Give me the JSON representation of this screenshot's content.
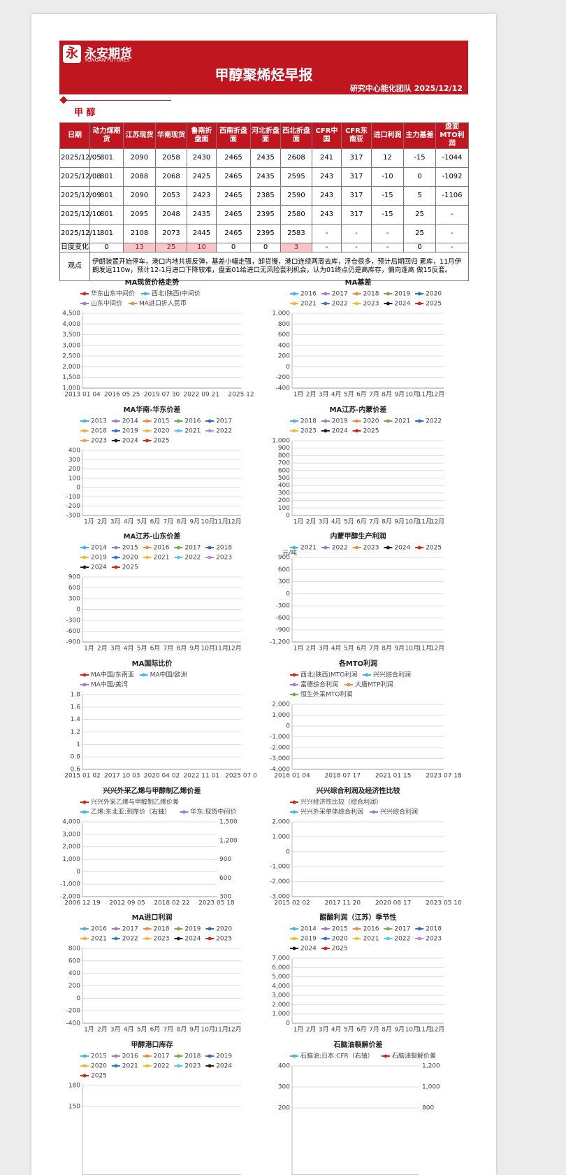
{
  "header": {
    "logo": "永安期货",
    "logo_en": "YONGAN FUTURES",
    "title": "甲醇聚烯烃早报",
    "subtitle": "研究中心能化团队  2025/12/12"
  },
  "section": "甲 醇",
  "table": {
    "columns": [
      "日期",
      "动力煤期货",
      "江苏现货",
      "华南现货",
      "鲁南折盘面",
      "西南折盘面",
      "河北折盘面",
      "西北折盘面",
      "CFR中国",
      "CFR东南亚",
      "进口利润",
      "主力基差",
      "盘面MTO利润"
    ],
    "rows": [
      [
        "2025/12/05",
        801,
        2090,
        2058,
        2430,
        2465,
        2435,
        2608,
        241,
        317,
        12,
        -15,
        -1044
      ],
      [
        "2025/12/08",
        801,
        2088,
        2068,
        2425,
        2465,
        2435,
        2595,
        243,
        317,
        -10,
        0,
        -1092
      ],
      [
        "2025/12/09",
        801,
        2090,
        2053,
        2423,
        2465,
        2385,
        2590,
        243,
        317,
        -15,
        5,
        -1106
      ],
      [
        "2025/12/10",
        801,
        2095,
        2048,
        2435,
        2465,
        2395,
        2580,
        243,
        317,
        -15,
        25,
        "-"
      ],
      [
        "2025/12/11",
        801,
        2108,
        2073,
        2445,
        2465,
        2395,
        2583,
        "-",
        "-",
        "-",
        25,
        "-"
      ]
    ],
    "change_label": "日度变化",
    "change": [
      {
        "text": 0,
        "highlight": false
      },
      {
        "text": 13,
        "highlight": true
      },
      {
        "text": 25,
        "highlight": true
      },
      {
        "text": 10,
        "highlight": true
      },
      {
        "text": 0,
        "highlight": false
      },
      {
        "text": 0,
        "highlight": false
      },
      {
        "text": 3,
        "highlight": true
      },
      {
        "text": "-",
        "highlight": false
      },
      {
        "text": "-",
        "highlight": false
      },
      {
        "text": "-",
        "highlight": false
      },
      {
        "text": 0,
        "highlight": false
      },
      {
        "text": "-",
        "highlight": false
      }
    ],
    "highlight_color": "#f6c6c8",
    "comment_label": "观点",
    "comment": "伊朗装置开始停车，港口内地共振反弹，基差小幅走强，卸货慢，港口连续两周去库，浮仓很多，预计后期回归 累库，11月伊朗发运110w，预计12-1月进口下降较难，盘面01给进口无风险套利机会，认为01终点仍是高库存，偏向逢高 做15反套。"
  },
  "charts": [
    {
      "title": "MA现货价格走势",
      "legend": [
        {
          "name": "华东山东中间价",
          "color": "#d7261e"
        },
        {
          "name": "西北(陕西)中间价",
          "color": "#3fb8e8"
        },
        {
          "name": "山东中间价",
          "color": "#a07cc8"
        },
        {
          "name": "MA进口折人民币",
          "color": "#f28a3f"
        }
      ],
      "yticks": [
        "1,000",
        "1,500",
        "2,000",
        "2,500",
        "3,000",
        "3,500",
        "4,000",
        "4,500"
      ],
      "xticks": [
        "2013 01 04",
        "2016 05 25",
        "2019 07 30",
        "2022 09 21",
        "2025 12"
      ]
    },
    {
      "title": "MA基差",
      "legend": [
        {
          "name": "2016",
          "color": "#3fb8e8"
        },
        {
          "name": "2017",
          "color": "#a07cc8"
        },
        {
          "name": "2018",
          "color": "#f28a3f"
        },
        {
          "name": "2019",
          "color": "#70ad47"
        },
        {
          "name": "2020",
          "color": "#2f6ec5"
        },
        {
          "name": "2021",
          "color": "#f5b630"
        },
        {
          "name": "2022",
          "color": "#3a78d0"
        },
        {
          "name": "2023",
          "color": "#f0c030"
        },
        {
          "name": "2024",
          "color": "#222222"
        },
        {
          "name": "2025",
          "color": "#d7261e"
        }
      ],
      "yticks": [
        "-400",
        "-200",
        "0",
        "200",
        "400",
        "600",
        "800",
        "1,000"
      ],
      "xticks": [
        "1月",
        "2月",
        "3月",
        "4月",
        "5月",
        "6月",
        "7月",
        "8月",
        "9月",
        "10月",
        "11月",
        "12月"
      ]
    },
    {
      "title": "MA华南-华东价差",
      "legend": [
        {
          "name": "2013",
          "color": "#3fb8e8"
        },
        {
          "name": "2014",
          "color": "#a07cc8"
        },
        {
          "name": "2015",
          "color": "#f28a3f"
        },
        {
          "name": "2016",
          "color": "#70ad47"
        },
        {
          "name": "2017",
          "color": "#2f6ec5"
        },
        {
          "name": "2018",
          "color": "#f5b630"
        },
        {
          "name": "2019",
          "color": "#3a78d0"
        },
        {
          "name": "2020",
          "color": "#f0c030"
        },
        {
          "name": "2021",
          "color": "#5cc8ee"
        },
        {
          "name": "2022",
          "color": "#b48fd6"
        },
        {
          "name": "2023",
          "color": "#f5a05a"
        },
        {
          "name": "2024",
          "color": "#222222"
        },
        {
          "name": "2025",
          "color": "#d7261e"
        }
      ],
      "yticks": [
        "-300",
        "-200",
        "-100",
        "0",
        "100",
        "200",
        "300",
        "400"
      ],
      "xticks": [
        "1月",
        "2月",
        "3月",
        "4月",
        "5月",
        "6月",
        "7月",
        "8月",
        "9月",
        "10月",
        "11月",
        "12月"
      ]
    },
    {
      "title": "MA江苏-内蒙价差",
      "legend": [
        {
          "name": "2018",
          "color": "#3fb8e8"
        },
        {
          "name": "2019",
          "color": "#a07cc8"
        },
        {
          "name": "2020",
          "color": "#f28a3f"
        },
        {
          "name": "2021",
          "color": "#70ad47"
        },
        {
          "name": "2022",
          "color": "#2f6ec5"
        },
        {
          "name": "2023",
          "color": "#f5b630"
        },
        {
          "name": "2024",
          "color": "#222222"
        },
        {
          "name": "2025",
          "color": "#d7261e"
        }
      ],
      "yticks": [
        "0",
        "100",
        "200",
        "300",
        "400",
        "500",
        "600",
        "700",
        "800",
        "900",
        "1,000"
      ],
      "xticks": [
        "1月",
        "2月",
        "3月",
        "4月",
        "5月",
        "6月",
        "7月",
        "8月",
        "9月",
        "10月",
        "11月",
        "12月"
      ]
    },
    {
      "title": "MA江苏-山东价差",
      "legend": [
        {
          "name": "2014",
          "color": "#3fb8e8"
        },
        {
          "name": "2015",
          "color": "#a07cc8"
        },
        {
          "name": "2016",
          "color": "#f28a3f"
        },
        {
          "name": "2017",
          "color": "#70ad47"
        },
        {
          "name": "2018",
          "color": "#2f6ec5"
        },
        {
          "name": "2019",
          "color": "#f5b630"
        },
        {
          "name": "2020",
          "color": "#3a78d0"
        },
        {
          "name": "2021",
          "color": "#f0c030"
        },
        {
          "name": "2022",
          "color": "#5cc8ee"
        },
        {
          "name": "2023",
          "color": "#b48fd6"
        },
        {
          "name": "2024",
          "color": "#222222"
        },
        {
          "name": "2025",
          "color": "#d7261e"
        }
      ],
      "yticks": [
        "-900",
        "-600",
        "-300",
        "0",
        "300",
        "600",
        "900"
      ],
      "xticks": [
        "1月",
        "2月",
        "3月",
        "4月",
        "5月",
        "6月",
        "7月",
        "8月",
        "9月",
        "10月",
        "11月",
        "12月"
      ]
    },
    {
      "title": "内蒙甲醇生产利润",
      "unit": "元/吨",
      "legend": [
        {
          "name": "2021",
          "color": "#3fb8e8"
        },
        {
          "name": "2022",
          "color": "#a07cc8"
        },
        {
          "name": "2023",
          "color": "#f28a3f"
        },
        {
          "name": "2024",
          "color": "#222222"
        },
        {
          "name": "2025",
          "color": "#d7261e"
        }
      ],
      "yticks": [
        "-1,200",
        "-900",
        "-600",
        "-300",
        "0",
        "300",
        "600",
        "900"
      ],
      "xticks": [
        "1月",
        "2月",
        "3月",
        "4月",
        "5月",
        "6月",
        "7月",
        "8月",
        "9月",
        "10月",
        "11月",
        "12月"
      ]
    },
    {
      "title": "MA国际比价",
      "legend": [
        {
          "name": "MA中国/东南亚",
          "color": "#d7261e"
        },
        {
          "name": "MA中国/欧洲",
          "color": "#3fb8e8"
        },
        {
          "name": "MA中国/美湾",
          "color": "#a07cc8"
        }
      ],
      "yticks": [
        "0.6",
        "0.8",
        "1",
        "1.2",
        "1.4",
        "1.6",
        "1.8"
      ],
      "xticks": [
        "2015 01 02",
        "2017 10 03",
        "2020 04 02",
        "2022 11 01",
        "2025 07 0"
      ]
    },
    {
      "title": "各MTO利润",
      "legend": [
        {
          "name": "西北(陕西)MTO利润",
          "color": "#d7261e"
        },
        {
          "name": "兴兴综合利润",
          "color": "#3fb8e8"
        },
        {
          "name": "富德综合利润",
          "color": "#a07cc8"
        },
        {
          "name": "大唐MTP利润",
          "color": "#f28a3f"
        },
        {
          "name": "恒生外采MTO利润",
          "color": "#70ad47"
        }
      ],
      "yticks": [
        "-4,000",
        "-3,000",
        "-2,000",
        "-1,000",
        "0",
        "1,000",
        "2,000"
      ],
      "xticks": [
        "2016 01 04",
        "2018 07 17",
        "2021 01 15",
        "2023 07 18"
      ]
    },
    {
      "title": "兴兴外采乙烯与甲醇制乙烯价差",
      "legend": [
        {
          "name": "兴兴外采乙烯与甲醇制乙烯价差",
          "color": "#d7261e"
        },
        {
          "name": "乙烯:东北亚:到岸价（右轴）",
          "color": "#3fb8e8"
        },
        {
          "name": "华东:现货中间价",
          "color": "#a07cc8"
        }
      ],
      "yticks": [
        "-2,000",
        "-1,000",
        "0",
        "1,000",
        "2,000",
        "3,000",
        "4,000"
      ],
      "y2ticks": [
        "300",
        "600",
        "900",
        "1,200",
        "1,500"
      ],
      "xticks": [
        "2006 12 19",
        "2012 09 05",
        "2018 02 22",
        "2023 05 18"
      ]
    },
    {
      "title": "兴兴综合利润及经济性比较",
      "legend": [
        {
          "name": "兴兴经济性比较（综合利润）",
          "color": "#d7261e"
        },
        {
          "name": "兴兴外采单体综合利润",
          "color": "#3fb8e8"
        },
        {
          "name": "兴兴综合利润",
          "color": "#a07cc8"
        }
      ],
      "yticks": [
        "-3,000",
        "-2,000",
        "-1,000",
        "0",
        "1,000",
        "2,000"
      ],
      "xticks": [
        "2015 02 02",
        "2017 11 20",
        "2020 08 17",
        "2023 05 10"
      ]
    },
    {
      "title": "MA进口利润",
      "legend": [
        {
          "name": "2016",
          "color": "#3fb8e8"
        },
        {
          "name": "2017",
          "color": "#a07cc8"
        },
        {
          "name": "2018",
          "color": "#f28a3f"
        },
        {
          "name": "2019",
          "color": "#70ad47"
        },
        {
          "name": "2020",
          "color": "#2f6ec5"
        },
        {
          "name": "2021",
          "color": "#f5b630"
        },
        {
          "name": "2022",
          "color": "#3a78d0"
        },
        {
          "name": "2023",
          "color": "#f0c030"
        },
        {
          "name": "2024",
          "color": "#222222"
        },
        {
          "name": "2025",
          "color": "#d7261e"
        }
      ],
      "yticks": [
        "-400",
        "-200",
        "0",
        "200",
        "400",
        "600",
        "800"
      ],
      "xticks": [
        "1月",
        "2月",
        "3月",
        "4月",
        "5月",
        "6月",
        "7月",
        "8月",
        "9月",
        "10月",
        "11月",
        "12月"
      ]
    },
    {
      "title": "醋酸利润（江苏）季节性",
      "legend": [
        {
          "name": "2014",
          "color": "#3fb8e8"
        },
        {
          "name": "2015",
          "color": "#a07cc8"
        },
        {
          "name": "2016",
          "color": "#f28a3f"
        },
        {
          "name": "2017",
          "color": "#70ad47"
        },
        {
          "name": "2018",
          "color": "#2f6ec5"
        },
        {
          "name": "2019",
          "color": "#f5b630"
        },
        {
          "name": "2020",
          "color": "#3a78d0"
        },
        {
          "name": "2021",
          "color": "#f0c030"
        },
        {
          "name": "2022",
          "color": "#5cc8ee"
        },
        {
          "name": "2023",
          "color": "#b48fd6"
        },
        {
          "name": "2024",
          "color": "#222222"
        },
        {
          "name": "2025",
          "color": "#d7261e"
        }
      ],
      "yticks": [
        "0",
        "1,000",
        "2,000",
        "3,000",
        "4,000",
        "5,000",
        "6,000",
        "7,000"
      ],
      "xticks": [
        "1月",
        "2月",
        "3月",
        "4月",
        "5月",
        "6月",
        "7月",
        "8月",
        "9月",
        "10月",
        "11月",
        "12月"
      ]
    },
    {
      "title": "甲醇港口库存",
      "legend": [
        {
          "name": "2015",
          "color": "#3fb8e8"
        },
        {
          "name": "2016",
          "color": "#a07cc8"
        },
        {
          "name": "2017",
          "color": "#f28a3f"
        },
        {
          "name": "2018",
          "color": "#70ad47"
        },
        {
          "name": "2019",
          "color": "#2f6ec5"
        },
        {
          "name": "2020",
          "color": "#f5b630"
        },
        {
          "name": "2021",
          "color": "#3a78d0"
        },
        {
          "name": "2022",
          "color": "#f0c030"
        },
        {
          "name": "2023",
          "color": "#5cc8ee"
        },
        {
          "name": "2024",
          "color": "#222222"
        },
        {
          "name": "2025",
          "color": "#d7261e"
        }
      ],
      "yticks": [
        "150",
        "180"
      ],
      "xticks": []
    },
    {
      "title": "石脑油裂解价差",
      "legend": [
        {
          "name": "石脑油:日本:CFR（右轴）",
          "color": "#3fb8e8"
        },
        {
          "name": "石脑油裂解价差",
          "color": "#d7261e"
        }
      ],
      "yticks": [
        "200",
        "300",
        "400"
      ],
      "y2ticks": [
        "800",
        "1,000",
        "1,200"
      ],
      "xticks": []
    }
  ]
}
